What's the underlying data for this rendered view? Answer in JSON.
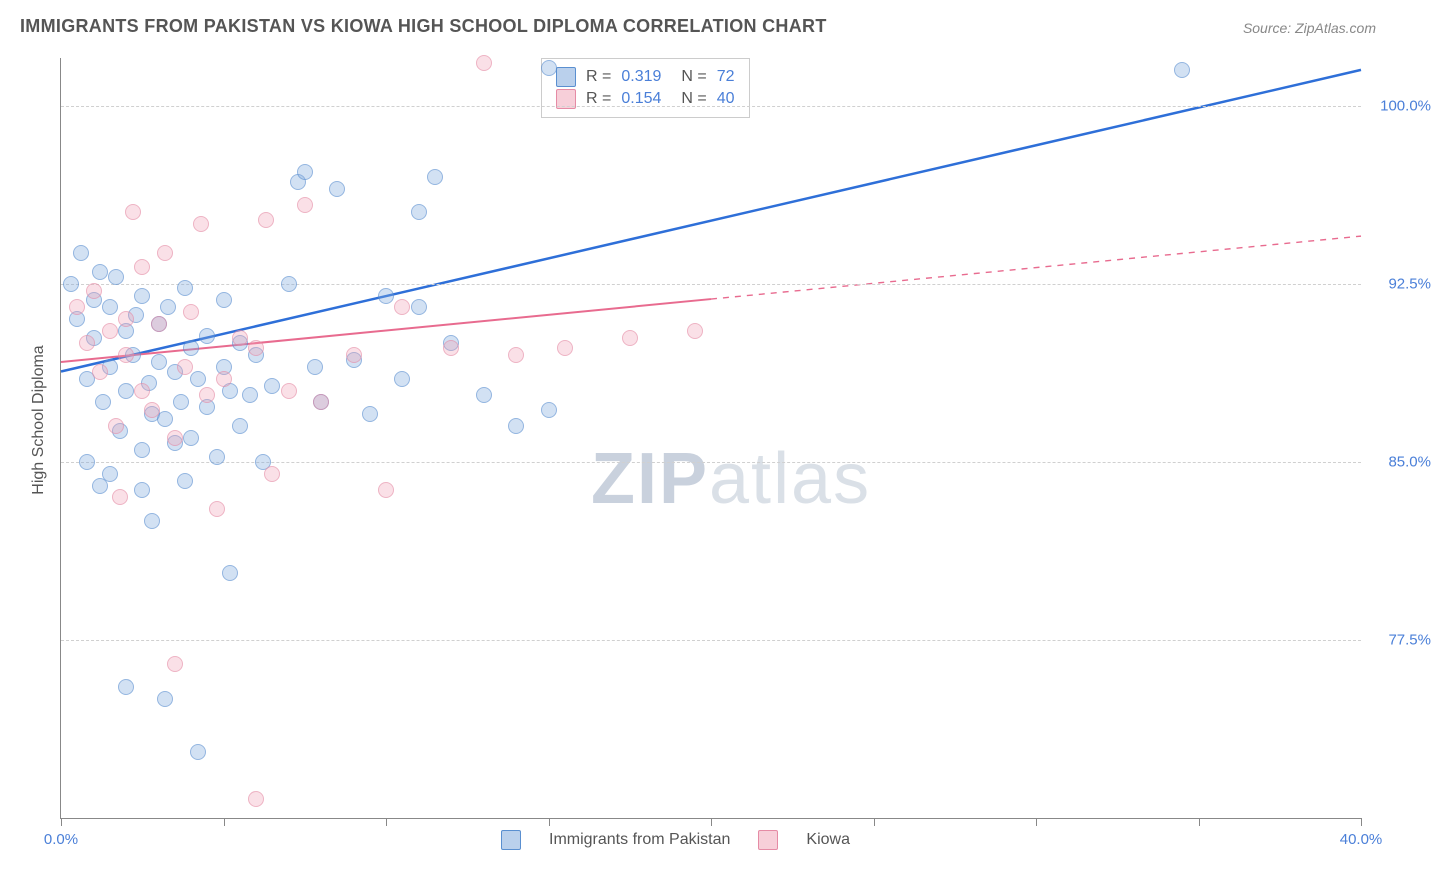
{
  "title": "IMMIGRANTS FROM PAKISTAN VS KIOWA HIGH SCHOOL DIPLOMA CORRELATION CHART",
  "source": "Source: ZipAtlas.com",
  "ylabel": "High School Diploma",
  "watermark_a": "ZIP",
  "watermark_b": "atlas",
  "chart": {
    "type": "scatter-correlation",
    "xlim": [
      0,
      40
    ],
    "ylim": [
      70,
      102
    ],
    "x_ticks": [
      0,
      5,
      10,
      15,
      20,
      25,
      30,
      35,
      40
    ],
    "x_tick_labels": {
      "0": "0.0%",
      "40": "40.0%"
    },
    "y_gridlines": [
      77.5,
      85.0,
      92.5,
      100.0
    ],
    "y_tick_labels": [
      "77.5%",
      "85.0%",
      "92.5%",
      "100.0%"
    ],
    "background_color": "#ffffff",
    "grid_color": "#d0d0d0",
    "axis_color": "#888888",
    "label_color": "#4a7fd8",
    "title_color": "#555555",
    "title_fontsize": 18,
    "label_fontsize": 15
  },
  "series": [
    {
      "name": "Immigrants from Pakistan",
      "color_fill": "rgba(130,170,220,0.55)",
      "color_stroke": "#5a8fd0",
      "line_color": "#2e6fd8",
      "line_width": 2.5,
      "R": "0.319",
      "N": "72",
      "trend": {
        "x1": 0,
        "y1": 88.8,
        "x2": 40,
        "y2": 101.5,
        "dash_after_x": 40
      },
      "points": [
        [
          0.3,
          92.5
        ],
        [
          0.5,
          91.0
        ],
        [
          0.6,
          93.8
        ],
        [
          0.8,
          88.5
        ],
        [
          1.0,
          90.2
        ],
        [
          1.0,
          91.8
        ],
        [
          1.2,
          93.0
        ],
        [
          1.3,
          87.5
        ],
        [
          1.5,
          89.0
        ],
        [
          1.5,
          91.5
        ],
        [
          1.7,
          92.8
        ],
        [
          1.8,
          86.3
        ],
        [
          2.0,
          90.5
        ],
        [
          2.0,
          88.0
        ],
        [
          2.2,
          89.5
        ],
        [
          2.3,
          91.2
        ],
        [
          2.5,
          92.0
        ],
        [
          2.5,
          85.5
        ],
        [
          2.7,
          88.3
        ],
        [
          2.8,
          87.0
        ],
        [
          3.0,
          90.8
        ],
        [
          3.0,
          89.2
        ],
        [
          3.2,
          86.8
        ],
        [
          3.3,
          91.5
        ],
        [
          3.5,
          88.8
        ],
        [
          3.5,
          85.8
        ],
        [
          3.7,
          87.5
        ],
        [
          3.8,
          92.3
        ],
        [
          4.0,
          89.8
        ],
        [
          4.0,
          86.0
        ],
        [
          4.2,
          88.5
        ],
        [
          4.5,
          90.3
        ],
        [
          4.5,
          87.3
        ],
        [
          4.8,
          85.2
        ],
        [
          5.0,
          89.0
        ],
        [
          5.0,
          91.8
        ],
        [
          5.2,
          88.0
        ],
        [
          5.5,
          90.0
        ],
        [
          5.5,
          86.5
        ],
        [
          5.8,
          87.8
        ],
        [
          6.0,
          89.5
        ],
        [
          6.2,
          85.0
        ],
        [
          6.5,
          88.2
        ],
        [
          7.0,
          92.5
        ],
        [
          7.3,
          96.8
        ],
        [
          7.5,
          97.2
        ],
        [
          7.8,
          89.0
        ],
        [
          8.0,
          87.5
        ],
        [
          8.5,
          96.5
        ],
        [
          9.0,
          89.3
        ],
        [
          9.5,
          87.0
        ],
        [
          10.0,
          92.0
        ],
        [
          10.5,
          88.5
        ],
        [
          11.0,
          91.5
        ],
        [
          11.0,
          95.5
        ],
        [
          11.5,
          97.0
        ],
        [
          12.0,
          90.0
        ],
        [
          13.0,
          87.8
        ],
        [
          14.0,
          86.5
        ],
        [
          15.0,
          101.6
        ],
        [
          15.0,
          87.2
        ],
        [
          5.2,
          80.3
        ],
        [
          4.2,
          72.8
        ],
        [
          2.0,
          75.5
        ],
        [
          3.2,
          75.0
        ],
        [
          1.5,
          84.5
        ],
        [
          2.5,
          83.8
        ],
        [
          3.8,
          84.2
        ],
        [
          34.5,
          101.5
        ],
        [
          0.8,
          85.0
        ],
        [
          1.2,
          84.0
        ],
        [
          2.8,
          82.5
        ]
      ]
    },
    {
      "name": "Kiowa",
      "color_fill": "rgba(240,160,180,0.5)",
      "color_stroke": "#e58ba5",
      "line_color": "#e86b8f",
      "line_width": 2,
      "R": "0.154",
      "N": "40",
      "trend": {
        "x1": 0,
        "y1": 89.2,
        "x2": 40,
        "y2": 94.5,
        "dash_after_x": 20
      },
      "points": [
        [
          0.5,
          91.5
        ],
        [
          0.8,
          90.0
        ],
        [
          1.0,
          92.2
        ],
        [
          1.2,
          88.8
        ],
        [
          1.5,
          90.5
        ],
        [
          1.7,
          86.5
        ],
        [
          2.0,
          89.5
        ],
        [
          2.0,
          91.0
        ],
        [
          2.2,
          95.5
        ],
        [
          2.5,
          93.2
        ],
        [
          2.5,
          88.0
        ],
        [
          2.8,
          87.2
        ],
        [
          3.0,
          90.8
        ],
        [
          3.2,
          93.8
        ],
        [
          3.5,
          86.0
        ],
        [
          3.8,
          89.0
        ],
        [
          4.0,
          91.3
        ],
        [
          4.3,
          95.0
        ],
        [
          4.5,
          87.8
        ],
        [
          5.0,
          88.5
        ],
        [
          5.5,
          90.2
        ],
        [
          6.0,
          89.8
        ],
        [
          6.3,
          95.2
        ],
        [
          6.5,
          84.5
        ],
        [
          7.0,
          88.0
        ],
        [
          7.5,
          95.8
        ],
        [
          8.0,
          87.5
        ],
        [
          9.0,
          89.5
        ],
        [
          10.0,
          83.8
        ],
        [
          10.5,
          91.5
        ],
        [
          12.0,
          89.8
        ],
        [
          13.0,
          101.8
        ],
        [
          14.0,
          89.5
        ],
        [
          15.5,
          89.8
        ],
        [
          17.5,
          90.2
        ],
        [
          19.5,
          90.5
        ],
        [
          3.5,
          76.5
        ],
        [
          6.0,
          70.8
        ],
        [
          1.8,
          83.5
        ],
        [
          4.8,
          83.0
        ]
      ]
    }
  ],
  "bottom_legend": [
    {
      "label": "Immigrants from Pakistan",
      "fill": "rgba(130,170,220,0.55)",
      "stroke": "#5a8fd0"
    },
    {
      "label": "Kiowa",
      "fill": "rgba(240,160,180,0.5)",
      "stroke": "#e58ba5"
    }
  ],
  "legend_labels": {
    "R": "R =",
    "N": "N ="
  }
}
